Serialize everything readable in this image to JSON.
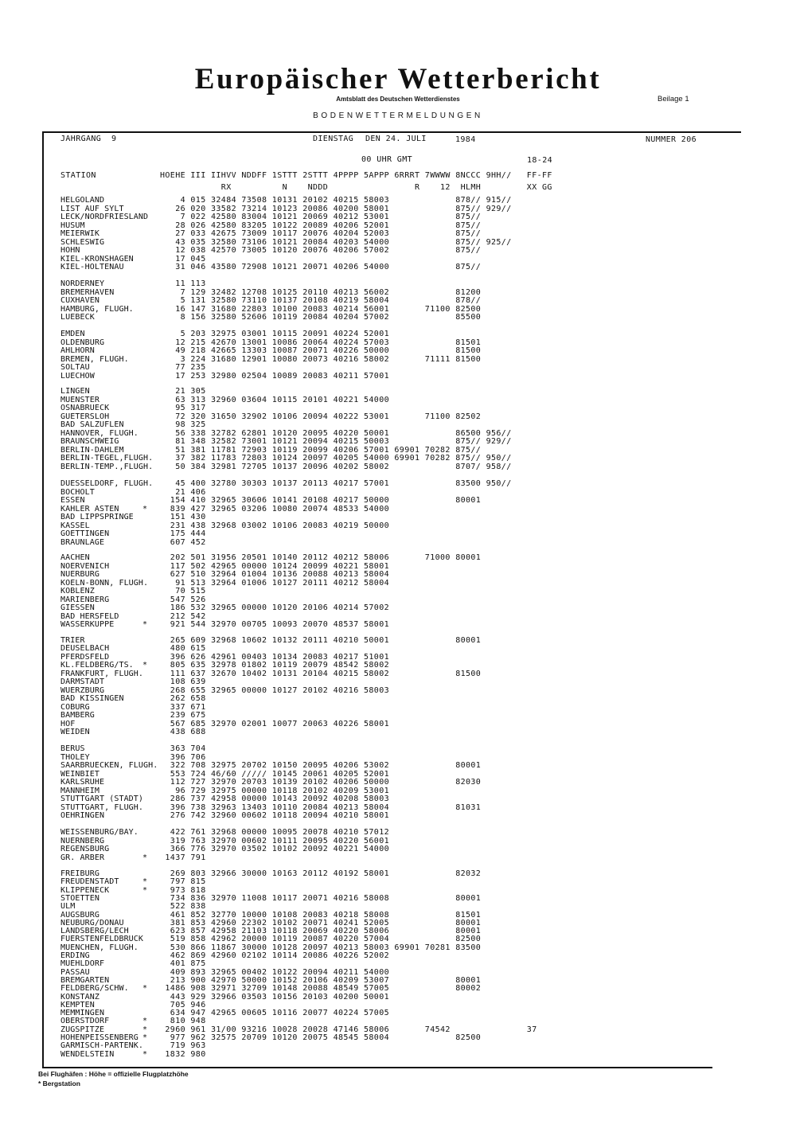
{
  "header": {
    "title": "Europäischer Wetterbericht",
    "subtitle": "Amtsblatt des Deutschen Wetterdienstes",
    "supplement": "Beilage 1",
    "section": "BODENWETTERMELDUNGEN",
    "volume": "JAHRGANG  9",
    "weekday": "DIENSTAG",
    "date": "DEN 24. JULI",
    "year": "1984",
    "number": "NUMMER 206",
    "obs_time": "00 UHR GMT",
    "period": "18-24"
  },
  "columns_row1": [
    "STATION",
    "HOEHE",
    "III",
    "IIHVV",
    "NDDFF",
    "1STTT",
    "2STTT",
    "4PPPP",
    "5APPP",
    "6RRRT",
    "7WWWW",
    "8NCCC",
    "9HH//",
    "FF-FF"
  ],
  "columns_row2": [
    "RX",
    "N",
    "NDDD",
    "R",
    "12",
    "HLMH",
    "XX GG"
  ],
  "blocks": [
    [
      [
        "HELGOLAND",
        "",
        "4",
        "015",
        "32484",
        "73508",
        "10131",
        "20102",
        "40215",
        "58003",
        "",
        "",
        "878//",
        "915//"
      ],
      [
        "LIST AUF SYLT",
        "",
        "26",
        "020",
        "33582",
        "73214",
        "10123",
        "20086",
        "40200",
        "58001",
        "",
        "",
        "875//",
        "929//"
      ],
      [
        "LECK/NORDFRIESLAND",
        "",
        "7",
        "022",
        "42580",
        "83004",
        "10121",
        "20069",
        "40212",
        "53001",
        "",
        "",
        "875//"
      ],
      [
        "HUSUM",
        "",
        "28",
        "026",
        "42580",
        "83205",
        "10122",
        "20089",
        "40206",
        "52001",
        "",
        "",
        "875//"
      ],
      [
        "MEIERWIK",
        "",
        "27",
        "033",
        "42675",
        "73009",
        "10117",
        "20076",
        "40204",
        "52003",
        "",
        "",
        "875//"
      ],
      [
        "SCHLESWIG",
        "",
        "43",
        "035",
        "32580",
        "73106",
        "10121",
        "20084",
        "40203",
        "54000",
        "",
        "",
        "875//",
        "925//"
      ],
      [
        "HOHN",
        "",
        "12",
        "038",
        "42570",
        "73005",
        "10120",
        "20076",
        "40206",
        "57002",
        "",
        "",
        "875//"
      ],
      [
        "KIEL-KRONSHAGEN",
        "",
        "17",
        "045"
      ],
      [
        "KIEL-HOLTENAU",
        "",
        "31",
        "046",
        "43580",
        "72908",
        "10121",
        "20071",
        "40206",
        "54000",
        "",
        "",
        "875//"
      ]
    ],
    [
      [
        "NORDERNEY",
        "",
        "11",
        "113"
      ],
      [
        "BREMERHAVEN",
        "",
        "7",
        "129",
        "32482",
        "12708",
        "10125",
        "20110",
        "40213",
        "56002",
        "",
        "",
        "81200"
      ],
      [
        "CUXHAVEN",
        "",
        "5",
        "131",
        "32580",
        "73110",
        "10137",
        "20108",
        "40219",
        "58004",
        "",
        "",
        "878//"
      ],
      [
        "HAMBURG, FLUGH.",
        "",
        "16",
        "147",
        "31680",
        "22803",
        "10100",
        "20083",
        "40214",
        "56001",
        "",
        "71100",
        "82500"
      ],
      [
        "LUEBECK",
        "",
        "8",
        "156",
        "32580",
        "52606",
        "10119",
        "20084",
        "40204",
        "57002",
        "",
        "",
        "85500"
      ]
    ],
    [
      [
        "EMDEN",
        "",
        "5",
        "203",
        "32975",
        "03001",
        "10115",
        "20091",
        "40224",
        "52001"
      ],
      [
        "OLDENBURG",
        "",
        "12",
        "215",
        "42670",
        "13001",
        "10086",
        "20064",
        "40224",
        "57003",
        "",
        "",
        "81501"
      ],
      [
        "AHLHORN",
        "",
        "49",
        "218",
        "42665",
        "13303",
        "10087",
        "20071",
        "40226",
        "50000",
        "",
        "",
        "81500"
      ],
      [
        "BREMEN, FLUGH.",
        "",
        "3",
        "224",
        "31680",
        "12901",
        "10080",
        "20073",
        "40216",
        "58002",
        "",
        "71111",
        "81500"
      ],
      [
        "SOLTAU",
        "",
        "77",
        "235"
      ],
      [
        "LUECHOW",
        "",
        "17",
        "253",
        "32980",
        "02504",
        "10089",
        "20083",
        "40211",
        "57001"
      ]
    ],
    [
      [
        "LINGEN",
        "",
        "21",
        "305"
      ],
      [
        "MUENSTER",
        "",
        "63",
        "313",
        "32960",
        "03604",
        "10115",
        "20101",
        "40221",
        "54000"
      ],
      [
        "OSNABRUECK",
        "",
        "95",
        "317"
      ],
      [
        "GUETERSLOH",
        "",
        "72",
        "320",
        "31650",
        "32902",
        "10106",
        "20094",
        "40222",
        "53001",
        "",
        "71100",
        "82502"
      ],
      [
        "BAD SALZUFLEN",
        "",
        "98",
        "325"
      ],
      [
        "HANNOVER, FLUGH.",
        "",
        "56",
        "338",
        "32782",
        "62801",
        "10120",
        "20095",
        "40220",
        "50001",
        "",
        "",
        "86500",
        "956//"
      ],
      [
        "BRAUNSCHWEIG",
        "",
        "81",
        "348",
        "32582",
        "73001",
        "10121",
        "20094",
        "40215",
        "50003",
        "",
        "",
        "875//",
        "929//"
      ],
      [
        "BERLIN-DAHLEM",
        "",
        "51",
        "381",
        "11781",
        "72903",
        "10119",
        "20099",
        "40206",
        "57001",
        "69901",
        "70282",
        "875//"
      ],
      [
        "BERLIN-TEGEL,FLUGH.",
        "",
        "37",
        "382",
        "11783",
        "72803",
        "10124",
        "20097",
        "40205",
        "54000",
        "69901",
        "70282",
        "875//",
        "950//"
      ],
      [
        "BERLIN-TEMP.,FLUGH.",
        "",
        "50",
        "384",
        "32981",
        "72705",
        "10137",
        "20096",
        "40202",
        "58002",
        "",
        "",
        "8707/",
        "958//"
      ]
    ],
    [
      [
        "DUESSELDORF, FLUGH.",
        "",
        "45",
        "400",
        "32780",
        "30303",
        "10137",
        "20113",
        "40217",
        "57001",
        "",
        "",
        "83500",
        "950//"
      ],
      [
        "BOCHOLT",
        "",
        "21",
        "406"
      ],
      [
        "ESSEN",
        "",
        "154",
        "410",
        "32965",
        "30606",
        "10141",
        "20108",
        "40217",
        "50000",
        "",
        "",
        "80001"
      ],
      [
        "KAHLER ASTEN",
        "*",
        "839",
        "427",
        "32965",
        "03206",
        "10080",
        "20074",
        "48533",
        "54000"
      ],
      [
        "BAD LIPPSPRINGE",
        "",
        "151",
        "430"
      ],
      [
        "KASSEL",
        "",
        "231",
        "438",
        "32968",
        "03002",
        "10106",
        "20083",
        "40219",
        "50000"
      ],
      [
        "GOETTINGEN",
        "",
        "175",
        "444"
      ],
      [
        "BRAUNLAGE",
        "",
        "607",
        "452"
      ]
    ],
    [
      [
        "AACHEN",
        "",
        "202",
        "501",
        "31956",
        "20501",
        "10140",
        "20112",
        "40212",
        "58006",
        "",
        "71000",
        "80001"
      ],
      [
        "NOERVENICH",
        "",
        "117",
        "502",
        "42965",
        "00000",
        "10124",
        "20099",
        "40221",
        "58001"
      ],
      [
        "NUERBURG",
        "",
        "627",
        "510",
        "32964",
        "01004",
        "10136",
        "20088",
        "40213",
        "58004"
      ],
      [
        "KOELN-BONN, FLUGH.",
        "",
        "91",
        "513",
        "32964",
        "01006",
        "10127",
        "20111",
        "40212",
        "58004"
      ],
      [
        "KOBLENZ",
        "",
        "70",
        "515"
      ],
      [
        "MARIENBERG",
        "",
        "547",
        "526"
      ],
      [
        "GIESSEN",
        "",
        "186",
        "532",
        "32965",
        "00000",
        "10120",
        "20106",
        "40214",
        "57002"
      ],
      [
        "BAD HERSFELD",
        "",
        "212",
        "542"
      ],
      [
        "WASSERKUPPE",
        "*",
        "921",
        "544",
        "32970",
        "00705",
        "10093",
        "20070",
        "48537",
        "58001"
      ]
    ],
    [
      [
        "TRIER",
        "",
        "265",
        "609",
        "32968",
        "10602",
        "10132",
        "20111",
        "40210",
        "50001",
        "",
        "",
        "80001"
      ],
      [
        "DEUSELBACH",
        "",
        "480",
        "615"
      ],
      [
        "PFERDSFELD",
        "",
        "396",
        "626",
        "42961",
        "00403",
        "10134",
        "20083",
        "40217",
        "51001"
      ],
      [
        "KL.FELDBERG/TS.",
        "*",
        "805",
        "635",
        "32978",
        "01802",
        "10119",
        "20079",
        "48542",
        "58002"
      ],
      [
        "FRANKFURT, FLUGH.",
        "",
        "111",
        "637",
        "32670",
        "10402",
        "10131",
        "20104",
        "40215",
        "58002",
        "",
        "",
        "81500"
      ],
      [
        "DARMSTADT",
        "",
        "108",
        "639"
      ],
      [
        "WUERZBURG",
        "",
        "268",
        "655",
        "32965",
        "00000",
        "10127",
        "20102",
        "40216",
        "58003"
      ],
      [
        "BAD KISSINGEN",
        "",
        "262",
        "658"
      ],
      [
        "COBURG",
        "",
        "337",
        "671"
      ],
      [
        "BAMBERG",
        "",
        "239",
        "675"
      ],
      [
        "HOF",
        "",
        "567",
        "685",
        "32970",
        "02001",
        "10077",
        "20063",
        "40226",
        "58001"
      ],
      [
        "WEIDEN",
        "",
        "438",
        "688"
      ]
    ],
    [
      [
        "BERUS",
        "",
        "363",
        "704"
      ],
      [
        "THOLEY",
        "",
        "396",
        "706"
      ],
      [
        "SAARBRUECKEN, FLUGH.",
        "",
        "322",
        "708",
        "32975",
        "20702",
        "10150",
        "20095",
        "40206",
        "53002",
        "",
        "",
        "80001"
      ],
      [
        "WEINBIET",
        "",
        "553",
        "724",
        "46/60",
        "/////",
        "10145",
        "20061",
        "40205",
        "52001"
      ],
      [
        "KARLSRUHE",
        "",
        "112",
        "727",
        "32970",
        "20703",
        "10139",
        "20102",
        "40206",
        "50000",
        "",
        "",
        "82030"
      ],
      [
        "MANNHEIM",
        "",
        "96",
        "729",
        "32975",
        "00000",
        "10118",
        "20102",
        "40209",
        "53001"
      ],
      [
        "STUTTGART (STADT)",
        "",
        "286",
        "737",
        "42958",
        "00000",
        "10143",
        "20092",
        "40208",
        "58003"
      ],
      [
        "STUTTGART, FLUGH.",
        "",
        "396",
        "738",
        "32963",
        "13403",
        "10110",
        "20084",
        "40213",
        "58004",
        "",
        "",
        "81031"
      ],
      [
        "OEHRINGEN",
        "",
        "276",
        "742",
        "32960",
        "00602",
        "10118",
        "20094",
        "40210",
        "58001"
      ]
    ],
    [
      [
        "WEISSENBURG/BAY.",
        "",
        "422",
        "761",
        "32968",
        "00000",
        "10095",
        "20078",
        "40210",
        "57012"
      ],
      [
        "NUERNBERG",
        "",
        "319",
        "763",
        "32970",
        "00602",
        "10111",
        "20095",
        "40220",
        "56001"
      ],
      [
        "REGENSBURG",
        "",
        "366",
        "776",
        "32970",
        "03502",
        "10102",
        "20092",
        "40221",
        "54000"
      ],
      [
        "GR. ARBER",
        "*",
        "1437",
        "791"
      ]
    ],
    [
      [
        "FREIBURG",
        "",
        "269",
        "803",
        "32966",
        "30000",
        "10163",
        "20112",
        "40192",
        "58001",
        "",
        "",
        "82032"
      ],
      [
        "FREUDENSTADT",
        "*",
        "797",
        "815"
      ],
      [
        "KLIPPENECK",
        "*",
        "973",
        "818"
      ],
      [
        "STOETTEN",
        "",
        "734",
        "836",
        "32970",
        "11008",
        "10117",
        "20071",
        "40216",
        "58008",
        "",
        "",
        "80001"
      ],
      [
        "ULM",
        "",
        "522",
        "838"
      ],
      [
        "AUGSBURG",
        "",
        "461",
        "852",
        "32770",
        "10000",
        "10108",
        "20083",
        "40218",
        "58008",
        "",
        "",
        "81501"
      ],
      [
        "NEUBURG/DONAU",
        "",
        "381",
        "853",
        "42960",
        "22302",
        "10102",
        "20071",
        "40241",
        "52005",
        "",
        "",
        "80001"
      ],
      [
        "LANDSBERG/LECH",
        "",
        "623",
        "857",
        "42958",
        "21103",
        "10118",
        "20069",
        "40220",
        "58006",
        "",
        "",
        "80001"
      ],
      [
        "FUERSTENFELDBRUCK",
        "",
        "519",
        "858",
        "42962",
        "20000",
        "10119",
        "20087",
        "40220",
        "57004",
        "",
        "",
        "82500"
      ],
      [
        "MUENCHEN, FLUGH.",
        "",
        "530",
        "866",
        "11867",
        "30000",
        "10128",
        "20097",
        "40213",
        "58003",
        "69901",
        "70281",
        "83500"
      ],
      [
        "ERDING",
        "",
        "462",
        "869",
        "42960",
        "02102",
        "10114",
        "20086",
        "40226",
        "52002"
      ],
      [
        "MUEHLDORF",
        "",
        "401",
        "875"
      ],
      [
        "PASSAU",
        "",
        "409",
        "893",
        "32965",
        "00402",
        "10122",
        "20094",
        "40211",
        "54000"
      ],
      [
        "BREMGARTEN",
        "",
        "213",
        "900",
        "42970",
        "50000",
        "10152",
        "20106",
        "40209",
        "53007",
        "",
        "",
        "80001"
      ],
      [
        "FELDBERG/SCHW.",
        "*",
        "1486",
        "908",
        "32971",
        "32709",
        "10148",
        "20088",
        "48549",
        "57005",
        "",
        "",
        "80002"
      ],
      [
        "KONSTANZ",
        "",
        "443",
        "929",
        "32966",
        "03503",
        "10156",
        "20103",
        "40200",
        "50001"
      ],
      [
        "KEMPTEN",
        "",
        "705",
        "946"
      ],
      [
        "MEMMINGEN",
        "",
        "634",
        "947",
        "42965",
        "00605",
        "10116",
        "20077",
        "40224",
        "57005"
      ],
      [
        "OBERSTDORF",
        "*",
        "810",
        "948"
      ],
      [
        "ZUGSPITZE",
        "*",
        "2960",
        "961",
        "31/00",
        "93216",
        "10028",
        "20028",
        "47146",
        "58006",
        "",
        "74542",
        "",
        "",
        "37"
      ],
      [
        "HOHENPEISSENBERG",
        "*",
        "977",
        "962",
        "32575",
        "20709",
        "10120",
        "20075",
        "48545",
        "58004",
        "",
        "",
        "82500"
      ],
      [
        "GARMISCH-PARTENK.",
        "",
        "719",
        "963"
      ],
      [
        "WENDELSTEIN",
        "*",
        "1832",
        "980"
      ]
    ]
  ],
  "footnotes": [
    "Bei Flughäfen : Höhe = offizielle Flugplatzhöhe",
    "* Bergstation"
  ]
}
